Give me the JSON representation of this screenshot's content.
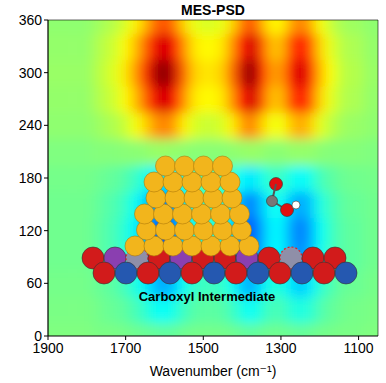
{
  "chart_data": {
    "type": "heatmap",
    "title": "MES-PSD",
    "x_label": "Wavenumber (cm⁻¹)",
    "annotation": "Carboxyl Intermediate",
    "xlim": [
      1900,
      1050
    ],
    "ylim": [
      0,
      360
    ],
    "xticks": [
      1900,
      1700,
      1500,
      1300,
      1100
    ],
    "yticks": [
      0,
      60,
      120,
      180,
      240,
      300,
      360
    ],
    "x": [
      1900,
      1875,
      1850,
      1825,
      1800,
      1775,
      1750,
      1725,
      1700,
      1675,
      1650,
      1625,
      1600,
      1575,
      1550,
      1525,
      1500,
      1475,
      1450,
      1425,
      1400,
      1375,
      1350,
      1325,
      1300,
      1275,
      1250,
      1225,
      1200,
      1175,
      1150,
      1125,
      1100,
      1075,
      1050
    ],
    "y": [
      0,
      30,
      60,
      90,
      120,
      150,
      180,
      210,
      240,
      270,
      300,
      330,
      360
    ],
    "cells": [
      [
        0,
        0,
        0,
        0,
        0,
        -0.01,
        -0.01,
        -0.01,
        -0.02,
        -0.03,
        -0.04,
        -0.05,
        -0.06,
        -0.05,
        -0.03,
        -0.02,
        -0.02,
        -0.02,
        -0.02,
        -0.03,
        -0.05,
        -0.06,
        -0.04,
        -0.03,
        -0.03,
        -0.04,
        -0.05,
        -0.04,
        -0.02,
        -0.02,
        -0.01,
        -0.01,
        -0.01,
        0,
        0
      ],
      [
        -0.01,
        -0.01,
        -0.01,
        -0.01,
        -0.01,
        -0.02,
        -0.04,
        -0.05,
        -0.07,
        -0.11,
        -0.16,
        -0.22,
        -0.24,
        -0.2,
        -0.13,
        -0.08,
        -0.07,
        -0.07,
        -0.08,
        -0.13,
        -0.2,
        -0.24,
        -0.17,
        -0.11,
        -0.11,
        -0.17,
        -0.2,
        -0.17,
        -0.1,
        -0.06,
        -0.04,
        -0.02,
        -0.02,
        -0.01,
        -0.01
      ],
      [
        -0.02,
        -0.02,
        -0.02,
        -0.02,
        -0.02,
        -0.04,
        -0.06,
        -0.08,
        -0.13,
        -0.19,
        -0.27,
        -0.38,
        -0.42,
        -0.36,
        -0.23,
        -0.15,
        -0.13,
        -0.13,
        -0.15,
        -0.23,
        -0.36,
        -0.42,
        -0.29,
        -0.19,
        -0.19,
        -0.29,
        -0.36,
        -0.29,
        -0.17,
        -0.11,
        -0.06,
        -0.04,
        -0.04,
        -0.02,
        -0.02
      ],
      [
        -0.03,
        -0.03,
        -0.03,
        -0.03,
        -0.03,
        -0.06,
        -0.09,
        -0.11,
        -0.17,
        -0.26,
        -0.37,
        -0.51,
        -0.57,
        -0.48,
        -0.31,
        -0.2,
        -0.17,
        -0.17,
        -0.2,
        -0.31,
        -0.48,
        -0.57,
        -0.4,
        -0.26,
        -0.26,
        -0.4,
        -0.48,
        -0.4,
        -0.23,
        -0.14,
        -0.09,
        -0.06,
        -0.06,
        -0.03,
        -0.03
      ],
      [
        -0.03,
        -0.03,
        -0.03,
        -0.03,
        -0.03,
        -0.06,
        -0.09,
        -0.12,
        -0.18,
        -0.27,
        -0.39,
        -0.54,
        -0.6,
        -0.51,
        -0.33,
        -0.21,
        -0.18,
        -0.18,
        -0.21,
        -0.33,
        -0.51,
        -0.6,
        -0.42,
        -0.27,
        -0.27,
        -0.42,
        -0.51,
        -0.42,
        -0.24,
        -0.15,
        -0.09,
        -0.06,
        -0.06,
        -0.03,
        -0.03
      ],
      [
        -0.03,
        -0.03,
        -0.03,
        -0.03,
        -0.03,
        -0.05,
        -0.08,
        -0.1,
        -0.15,
        -0.23,
        -0.33,
        -0.46,
        -0.51,
        -0.43,
        -0.28,
        -0.18,
        -0.15,
        -0.15,
        -0.18,
        -0.28,
        -0.43,
        -0.51,
        -0.36,
        -0.23,
        -0.23,
        -0.36,
        -0.43,
        -0.36,
        -0.2,
        -0.13,
        -0.08,
        -0.05,
        -0.05,
        -0.03,
        -0.03
      ],
      [
        -0.02,
        -0.02,
        -0.02,
        -0.02,
        -0.02,
        -0.03,
        -0.05,
        -0.06,
        -0.09,
        -0.14,
        -0.2,
        -0.27,
        -0.3,
        -0.26,
        -0.17,
        -0.11,
        -0.09,
        -0.09,
        -0.11,
        -0.17,
        -0.26,
        -0.3,
        -0.21,
        -0.14,
        -0.14,
        -0.21,
        -0.26,
        -0.21,
        -0.12,
        -0.08,
        -0.05,
        -0.03,
        -0.03,
        -0.02,
        -0.02
      ],
      [
        0,
        0,
        0,
        0,
        0,
        0.01,
        0.01,
        0.01,
        0.02,
        0.02,
        0.03,
        0.05,
        0.05,
        0.04,
        0.03,
        0.02,
        0.02,
        0.02,
        0.02,
        0.03,
        0.04,
        0.05,
        0.04,
        0.02,
        0.02,
        0.04,
        0.04,
        0.04,
        0.02,
        0.01,
        0.01,
        0.01,
        0.01,
        0,
        0
      ],
      [
        0.03,
        0.03,
        0.03,
        0.03,
        0.03,
        0.05,
        0.08,
        0.1,
        0.15,
        0.23,
        0.33,
        0.45,
        0.5,
        0.43,
        0.28,
        0.18,
        0.15,
        0.15,
        0.18,
        0.28,
        0.43,
        0.5,
        0.35,
        0.23,
        0.23,
        0.35,
        0.43,
        0.35,
        0.2,
        0.13,
        0.08,
        0.05,
        0.05,
        0.03,
        0.03
      ],
      [
        0.04,
        0.04,
        0.04,
        0.04,
        0.04,
        0.09,
        0.13,
        0.17,
        0.26,
        0.38,
        0.55,
        0.77,
        0.85,
        0.72,
        0.47,
        0.3,
        0.26,
        0.26,
        0.3,
        0.47,
        0.72,
        0.85,
        0.6,
        0.38,
        0.38,
        0.6,
        0.72,
        0.6,
        0.34,
        0.21,
        0.13,
        0.09,
        0.09,
        0.04,
        0.04
      ],
      [
        0.05,
        0.05,
        0.05,
        0.05,
        0.05,
        0.1,
        0.15,
        0.2,
        0.3,
        0.45,
        0.65,
        0.9,
        1.0,
        0.85,
        0.55,
        0.35,
        0.3,
        0.3,
        0.35,
        0.55,
        0.85,
        1.0,
        0.7,
        0.45,
        0.45,
        0.7,
        0.85,
        0.7,
        0.4,
        0.25,
        0.15,
        0.1,
        0.1,
        0.05,
        0.05
      ],
      [
        0.04,
        0.04,
        0.04,
        0.04,
        0.04,
        0.09,
        0.13,
        0.17,
        0.26,
        0.38,
        0.55,
        0.77,
        0.85,
        0.72,
        0.47,
        0.3,
        0.26,
        0.26,
        0.3,
        0.47,
        0.72,
        0.85,
        0.6,
        0.38,
        0.38,
        0.6,
        0.72,
        0.6,
        0.34,
        0.21,
        0.13,
        0.09,
        0.09,
        0.04,
        0.04
      ],
      [
        0.03,
        0.03,
        0.03,
        0.03,
        0.03,
        0.06,
        0.09,
        0.12,
        0.18,
        0.27,
        0.39,
        0.54,
        0.6,
        0.51,
        0.33,
        0.21,
        0.18,
        0.18,
        0.21,
        0.33,
        0.51,
        0.6,
        0.42,
        0.27,
        0.27,
        0.42,
        0.51,
        0.42,
        0.24,
        0.15,
        0.09,
        0.06,
        0.06,
        0.03,
        0.03
      ]
    ]
  }
}
